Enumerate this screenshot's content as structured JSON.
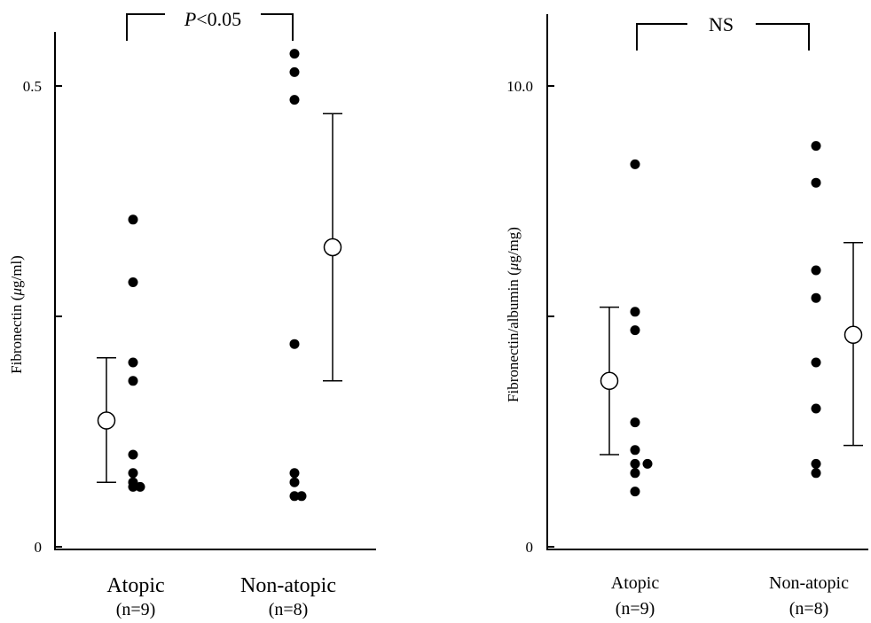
{
  "chart_data": [
    {
      "type": "scatter",
      "ylabel_main": "Fibronectin (",
      "ylabel_mu": "μ",
      "ylabel_unit": "g/ml)",
      "ylim": [
        0,
        0.5
      ],
      "yticks": [
        {
          "value": 0,
          "label": "0"
        },
        {
          "value": 0.25,
          "label": ""
        },
        {
          "value": 0.5,
          "label": "0.5"
        }
      ],
      "categories": [
        {
          "name": "Atopic",
          "n": "(n=9)"
        },
        {
          "name": "Non-atopic",
          "n": "(n=8)"
        }
      ],
      "series": [
        {
          "category": "Atopic",
          "values": [
            0.355,
            0.287,
            0.2,
            0.18,
            0.1,
            0.08,
            0.07,
            0.065,
            0.065
          ]
        },
        {
          "category": "Non-atopic",
          "values": [
            0.535,
            0.515,
            0.485,
            0.22,
            0.08,
            0.07,
            0.055,
            0.055
          ]
        }
      ],
      "means": [
        {
          "category": "Atopic",
          "mean": 0.137,
          "lower": 0.07,
          "upper": 0.205
        },
        {
          "category": "Non-atopic",
          "mean": 0.325,
          "lower": 0.18,
          "upper": 0.47
        }
      ],
      "significance": {
        "italic": "P",
        "rest": "<0.05"
      }
    },
    {
      "type": "scatter",
      "ylabel_main": "Fibronectin/albumin (",
      "ylabel_mu": "μ",
      "ylabel_unit": "g/mg)",
      "ylim": [
        0,
        10
      ],
      "yticks": [
        {
          "value": 0,
          "label": "0"
        },
        {
          "value": 5,
          "label": ""
        },
        {
          "value": 10,
          "label": "10.0"
        }
      ],
      "categories": [
        {
          "name": "Atopic",
          "n": "(n=9)"
        },
        {
          "name": "Non-atopic",
          "n": "(n=8)"
        }
      ],
      "series": [
        {
          "category": "Atopic",
          "values": [
            8.3,
            5.1,
            4.7,
            2.7,
            2.1,
            1.8,
            1.8,
            1.6,
            1.2
          ]
        },
        {
          "category": "Non-atopic",
          "values": [
            8.7,
            7.9,
            6.0,
            5.4,
            4.0,
            3.0,
            1.8,
            1.6
          ]
        }
      ],
      "means": [
        {
          "category": "Atopic",
          "mean": 3.6,
          "lower": 2.0,
          "upper": 5.2
        },
        {
          "category": "Non-atopic",
          "mean": 4.6,
          "lower": 2.2,
          "upper": 6.6
        }
      ],
      "significance": {
        "italic": "",
        "rest": "NS"
      }
    }
  ]
}
